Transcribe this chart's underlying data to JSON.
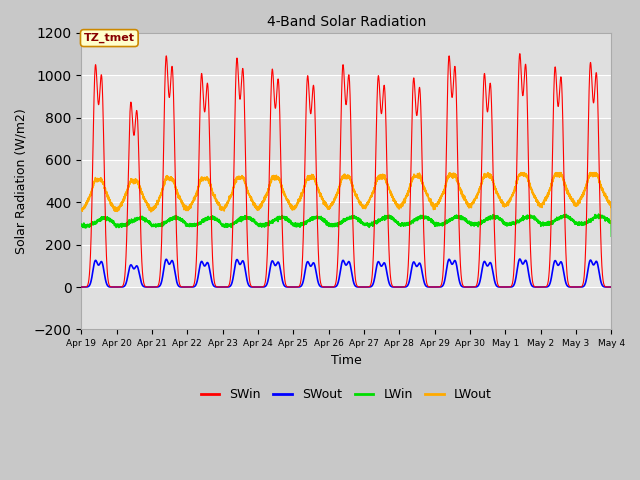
{
  "title": "4-Band Solar Radiation",
  "xlabel": "Time",
  "ylabel": "Solar Radiation (W/m2)",
  "ylim": [
    -200,
    1200
  ],
  "yticks": [
    -200,
    0,
    200,
    400,
    600,
    800,
    1000,
    1200
  ],
  "x_tick_labels": [
    "Apr 19",
    "Apr 20",
    "Apr 21",
    "Apr 22",
    "Apr 23",
    "Apr 24",
    "Apr 25",
    "Apr 26",
    "Apr 27",
    "Apr 28",
    "Apr 29",
    "Apr 30",
    "May 1",
    "May 2",
    "May 3",
    "May 4"
  ],
  "colors": {
    "SWin": "#ff0000",
    "SWout": "#0000ff",
    "LWin": "#00dd00",
    "LWout": "#ffaa00"
  },
  "annotation_text": "TZ_tmet",
  "annotation_bg": "#ffffcc",
  "annotation_border": "#cc8800",
  "bg_outer": "#c8c8c8",
  "bg_inner": "#e8e8e8",
  "grid_color": "#ffffff"
}
